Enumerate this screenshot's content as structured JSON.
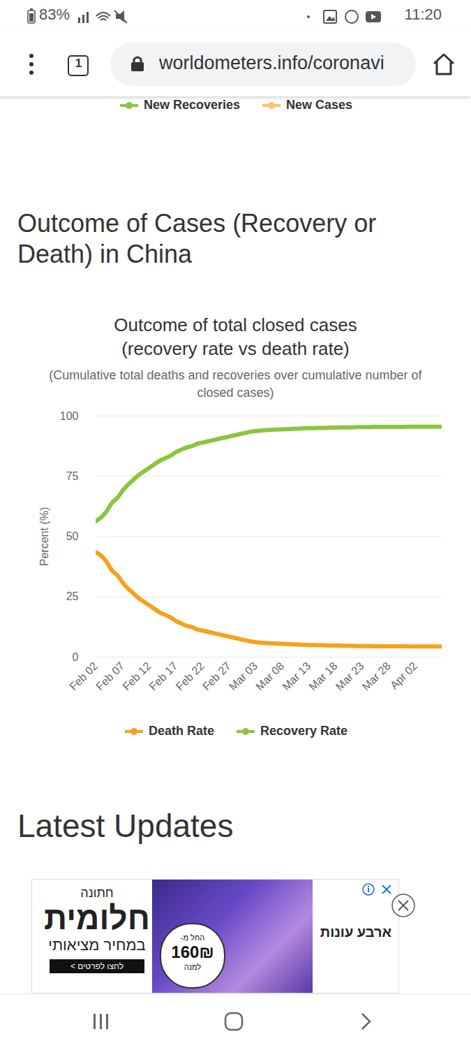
{
  "status_bar": {
    "battery": "83%",
    "time": "11:20"
  },
  "browser": {
    "tabs": "1",
    "url": "worldometers.info/coronavi"
  },
  "previous_chart_legend": [
    {
      "name": "New Recoveries",
      "color": "#8bc53f"
    },
    {
      "name": "New Cases",
      "color": "#f9c46b"
    }
  ],
  "section_heading": "Outcome of Cases (Recovery or Death) in China",
  "chart_data": {
    "type": "line",
    "title": "Outcome of total closed cases (recovery rate vs death rate)",
    "subtitle": "(Cumulative total deaths and recoveries over cumulative number of closed cases)",
    "y_label": "Percent (%)",
    "categories": [
      "Feb 02",
      null,
      null,
      null,
      null,
      "Feb 07",
      null,
      null,
      null,
      null,
      "Feb 12",
      null,
      null,
      null,
      null,
      "Feb 17",
      null,
      null,
      null,
      null,
      "Feb 22",
      null,
      null,
      null,
      null,
      "Feb 27",
      null,
      null,
      null,
      null,
      "Mar 03",
      null,
      null,
      null,
      null,
      "Mar 08",
      null,
      null,
      null,
      null,
      "Mar 13",
      null,
      null,
      null,
      null,
      "Mar 18",
      null,
      null,
      null,
      null,
      "Mar 23",
      null,
      null,
      null,
      null,
      "Mar 28",
      null,
      null,
      null,
      null,
      "Apr 02",
      null,
      null,
      null,
      null,
      null
    ],
    "series": [
      {
        "name": "Death Rate",
        "color": "#f7a11a",
        "values": [
          43.5,
          42,
          39.5,
          36,
          34,
          31,
          28.5,
          26.5,
          24.5,
          23,
          21.5,
          20,
          18.5,
          17.5,
          16.5,
          15,
          14,
          13,
          12.5,
          11.5,
          11,
          10.5,
          10,
          9.5,
          9,
          8.5,
          8,
          7.5,
          7,
          6.5,
          6.2,
          6,
          5.8,
          5.7,
          5.6,
          5.5,
          5.4,
          5.3,
          5.2,
          5.1,
          5,
          5,
          4.9,
          4.9,
          4.8,
          4.8,
          4.7,
          4.7,
          4.7,
          4.6,
          4.6,
          4.6,
          4.5,
          4.5,
          4.5,
          4.5,
          4.5,
          4.5,
          4.5,
          4.4,
          4.4,
          4.4,
          4.4,
          4.4,
          4.4,
          4.4
        ]
      },
      {
        "name": "Recovery Rate",
        "color": "#8bc53f",
        "values": [
          56.5,
          58,
          60.5,
          64,
          66,
          69,
          71.5,
          73.5,
          75.5,
          77,
          78.5,
          80,
          81.5,
          82.5,
          83.5,
          85,
          86,
          87,
          87.5,
          88.5,
          89,
          89.5,
          90,
          90.5,
          91,
          91.5,
          92,
          92.5,
          93,
          93.5,
          93.8,
          94,
          94.2,
          94.3,
          94.4,
          94.5,
          94.6,
          94.7,
          94.8,
          94.9,
          95,
          95,
          95.1,
          95.1,
          95.2,
          95.2,
          95.3,
          95.3,
          95.3,
          95.4,
          95.4,
          95.4,
          95.5,
          95.5,
          95.5,
          95.5,
          95.5,
          95.5,
          95.5,
          95.6,
          95.6,
          95.6,
          95.6,
          95.6,
          95.6,
          95.6
        ]
      }
    ],
    "ylim": [
      0,
      100
    ],
    "yticks": [
      0,
      25,
      50,
      75,
      100
    ],
    "grid": true,
    "legend": "bottom"
  },
  "next_heading": "Latest Updates",
  "ad": {
    "left_lines": [
      "חתונה",
      "חלומית",
      "במחיר מציאותי",
      "לחצו לפרטים >"
    ],
    "badge_lines": [
      "החל מ-",
      "160₪",
      "למנה"
    ],
    "brand": "ארבע עונות"
  }
}
